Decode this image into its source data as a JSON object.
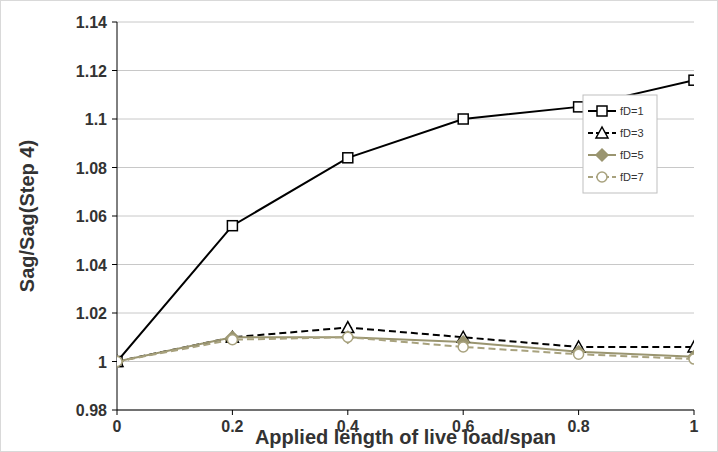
{
  "chart_data": {
    "type": "line",
    "x_label": "Applied length of live load/span",
    "y_label": "Sag/Sag(Step 4)",
    "x": [
      0,
      0.2,
      0.4,
      0.6,
      0.8,
      1
    ],
    "series": [
      {
        "name": "fD=1",
        "color": "#000000",
        "marker": "square",
        "line_style": "solid",
        "values": [
          1,
          1.056,
          1.084,
          1.1,
          1.105,
          1.116
        ]
      },
      {
        "name": "fD=3",
        "color": "#000000",
        "marker": "triangle",
        "line_style": "dashed",
        "values": [
          1,
          1.01,
          1.014,
          1.01,
          1.006,
          1.006
        ]
      },
      {
        "name": "fD=5",
        "color": "#9a9570",
        "marker": "diamond",
        "line_style": "solid",
        "values": [
          1,
          1.01,
          1.01,
          1.008,
          1.004,
          1.002
        ]
      },
      {
        "name": "fD=7",
        "color": "#a8a27e",
        "marker": "circle",
        "line_style": "dashed",
        "values": [
          1,
          1.009,
          1.01,
          1.006,
          1.003,
          1.001
        ]
      }
    ],
    "xlim": [
      0,
      1
    ],
    "xticks": [
      0,
      0.2,
      0.4,
      0.6,
      0.8,
      1
    ],
    "ylim": [
      0.98,
      1.14
    ],
    "yticks": [
      0.98,
      1,
      1.02,
      1.04,
      1.06,
      1.08,
      1.1,
      1.12,
      1.14
    ],
    "grid": true,
    "legend": "right"
  }
}
